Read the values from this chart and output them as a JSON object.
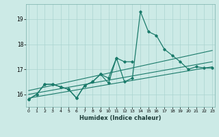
{
  "xlabel": "Humidex (Indice chaleur)",
  "background_color": "#cceae6",
  "grid_color": "#aad4d0",
  "line_color": "#1a7a6a",
  "x_values": [
    0,
    1,
    2,
    3,
    4,
    5,
    6,
    7,
    8,
    9,
    10,
    11,
    12,
    13,
    14,
    15,
    16,
    17,
    18,
    19,
    20,
    21,
    22,
    23
  ],
  "series1": [
    15.8,
    16.0,
    16.4,
    16.4,
    16.3,
    16.2,
    15.85,
    16.35,
    16.5,
    16.8,
    16.45,
    17.45,
    16.5,
    16.65,
    19.3,
    18.5,
    18.35,
    17.8,
    17.55,
    17.3,
    17.0,
    17.1,
    17.05,
    17.05
  ],
  "series2": [
    15.8,
    16.0,
    16.4,
    16.4,
    16.3,
    16.2,
    15.85,
    16.35,
    16.5,
    16.8,
    16.65,
    17.45,
    17.3,
    17.3,
    null,
    null,
    null,
    null,
    null,
    null,
    null,
    null,
    null,
    null
  ],
  "trend1_x": [
    0,
    23
  ],
  "trend1_y": [
    15.85,
    17.1
  ],
  "trend2_x": [
    0,
    23
  ],
  "trend2_y": [
    16.0,
    17.3
  ],
  "trend3_x": [
    0,
    23
  ],
  "trend3_y": [
    16.15,
    17.75
  ],
  "ylim": [
    15.5,
    19.6
  ],
  "yticks": [
    16,
    17,
    18,
    19
  ],
  "xticks": [
    0,
    1,
    2,
    3,
    4,
    5,
    6,
    7,
    8,
    9,
    10,
    11,
    12,
    13,
    14,
    15,
    16,
    17,
    18,
    19,
    20,
    21,
    22,
    23
  ],
  "xlim": [
    -0.3,
    23.3
  ]
}
